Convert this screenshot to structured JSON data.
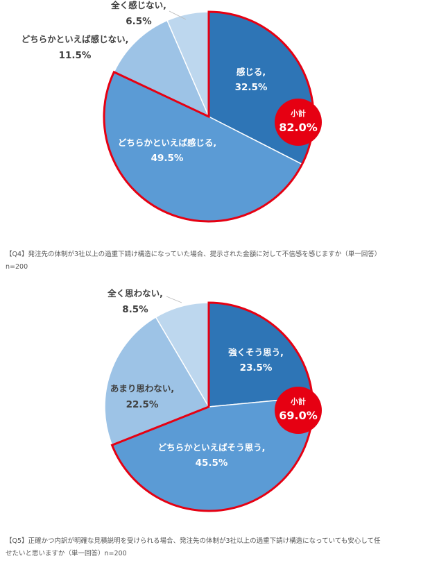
{
  "colors": {
    "dark_blue": "#2e75b6",
    "mid_blue": "#5b9bd5",
    "light_blue": "#9dc3e6",
    "pale_blue": "#bdd7ee",
    "highlight_red": "#e60012",
    "label_dark": "#404040",
    "label_white": "#ffffff"
  },
  "chart_data": [
    {
      "type": "pie",
      "slices": [
        {
          "label": "感じる,",
          "value": 32.5,
          "value_label": "32.5%",
          "color": "#2e75b6",
          "highlighted": true
        },
        {
          "label": "どちらかといえば感じる,",
          "value": 49.5,
          "value_label": "49.5%",
          "color": "#5b9bd5",
          "highlighted": true
        },
        {
          "label": "どちらかといえば感じない,",
          "value": 11.5,
          "value_label": "11.5%",
          "color": "#9dc3e6",
          "highlighted": false
        },
        {
          "label": "全く感じない,",
          "value": 6.5,
          "value_label": "6.5%",
          "color": "#bdd7ee",
          "highlighted": false
        }
      ],
      "subtotal": {
        "label": "小計",
        "value_label": "82.0%"
      }
    },
    {
      "type": "pie",
      "slices": [
        {
          "label": "強くそう思う,",
          "value": 23.5,
          "value_label": "23.5%",
          "color": "#2e75b6",
          "highlighted": true
        },
        {
          "label": "どちらかといえばそう思う,",
          "value": 45.5,
          "value_label": "45.5%",
          "color": "#5b9bd5",
          "highlighted": true
        },
        {
          "label": "あまり思わない,",
          "value": 22.5,
          "value_label": "22.5%",
          "color": "#9dc3e6",
          "highlighted": false
        },
        {
          "label": "全く思わない,",
          "value": 8.5,
          "value_label": "8.5%",
          "color": "#bdd7ee",
          "highlighted": false
        }
      ],
      "subtotal": {
        "label": "小計",
        "value_label": "69.0%"
      }
    }
  ],
  "captions": [
    {
      "line1": "【Q4】発注先の体制が3社以上の過重下請け構造になっていた場合、提示された金額に対して不信感を感じますか（単一回答）",
      "line2": "n=200"
    },
    {
      "line1": "【Q5】正確かつ内訳が明確な見積説明を受けられる場合、発注先の体制が3社以上の過重下請け構造になっていても安心して任",
      "line2": "せたいと思いますか（単一回答）n=200"
    }
  ]
}
